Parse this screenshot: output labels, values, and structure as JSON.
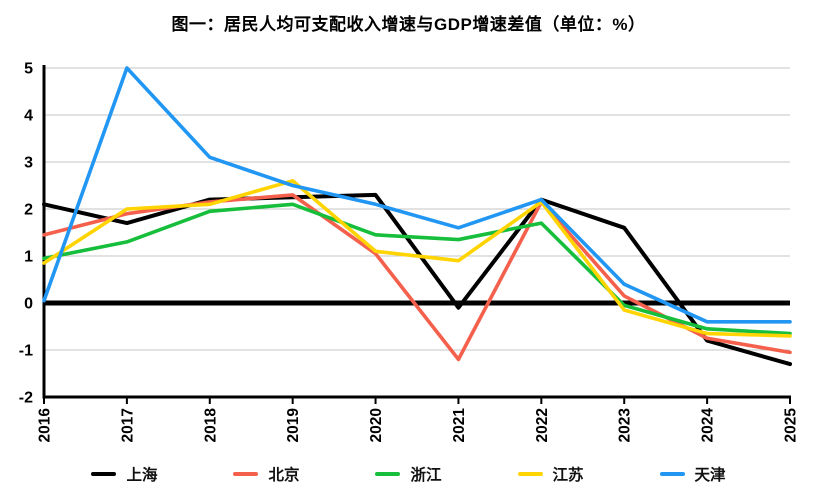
{
  "figure": {
    "title": "图一：居民人均可支配收入增速与GDP增速差值（单位：%）"
  },
  "chart_data": {
    "type": "line",
    "title": "图一：居民人均可支配收入增速与GDP增速差值（单位：%）",
    "unit": "%",
    "categories": [
      "2016",
      "2017",
      "2018",
      "2019",
      "2020",
      "2021",
      "2022",
      "2023",
      "2024",
      "2025"
    ],
    "series": [
      {
        "name": "上海",
        "color": "#000000",
        "values": [
          2.1,
          1.7,
          2.2,
          2.25,
          2.3,
          -0.1,
          2.2,
          1.6,
          -0.8,
          -1.3
        ]
      },
      {
        "name": "北京",
        "color": "#F4604C",
        "values": [
          1.45,
          1.9,
          2.15,
          2.3,
          1.05,
          -1.2,
          2.15,
          0.15,
          -0.75,
          -1.05
        ]
      },
      {
        "name": "浙江",
        "color": "#17BE3B",
        "values": [
          0.95,
          1.3,
          1.95,
          2.1,
          1.45,
          1.35,
          1.7,
          -0.05,
          -0.55,
          -0.65
        ]
      },
      {
        "name": "江苏",
        "color": "#FFD400",
        "values": [
          0.85,
          2.0,
          2.1,
          2.6,
          1.1,
          0.9,
          2.15,
          -0.15,
          -0.65,
          -0.7
        ]
      },
      {
        "name": "天津",
        "color": "#2196F3",
        "values": [
          0.05,
          5.0,
          3.1,
          2.5,
          2.1,
          1.6,
          2.2,
          0.4,
          -0.4,
          -0.4
        ]
      }
    ],
    "ylim": [
      -2,
      5
    ],
    "yticks": [
      5,
      4,
      3,
      2,
      1,
      0,
      -1,
      -2
    ],
    "grid": true,
    "zero_baseline_bold": true,
    "legend_position": "bottom"
  },
  "style": {
    "grid_color": "#c6c6c6",
    "axis_color": "#000000",
    "background": "#ffffff"
  }
}
